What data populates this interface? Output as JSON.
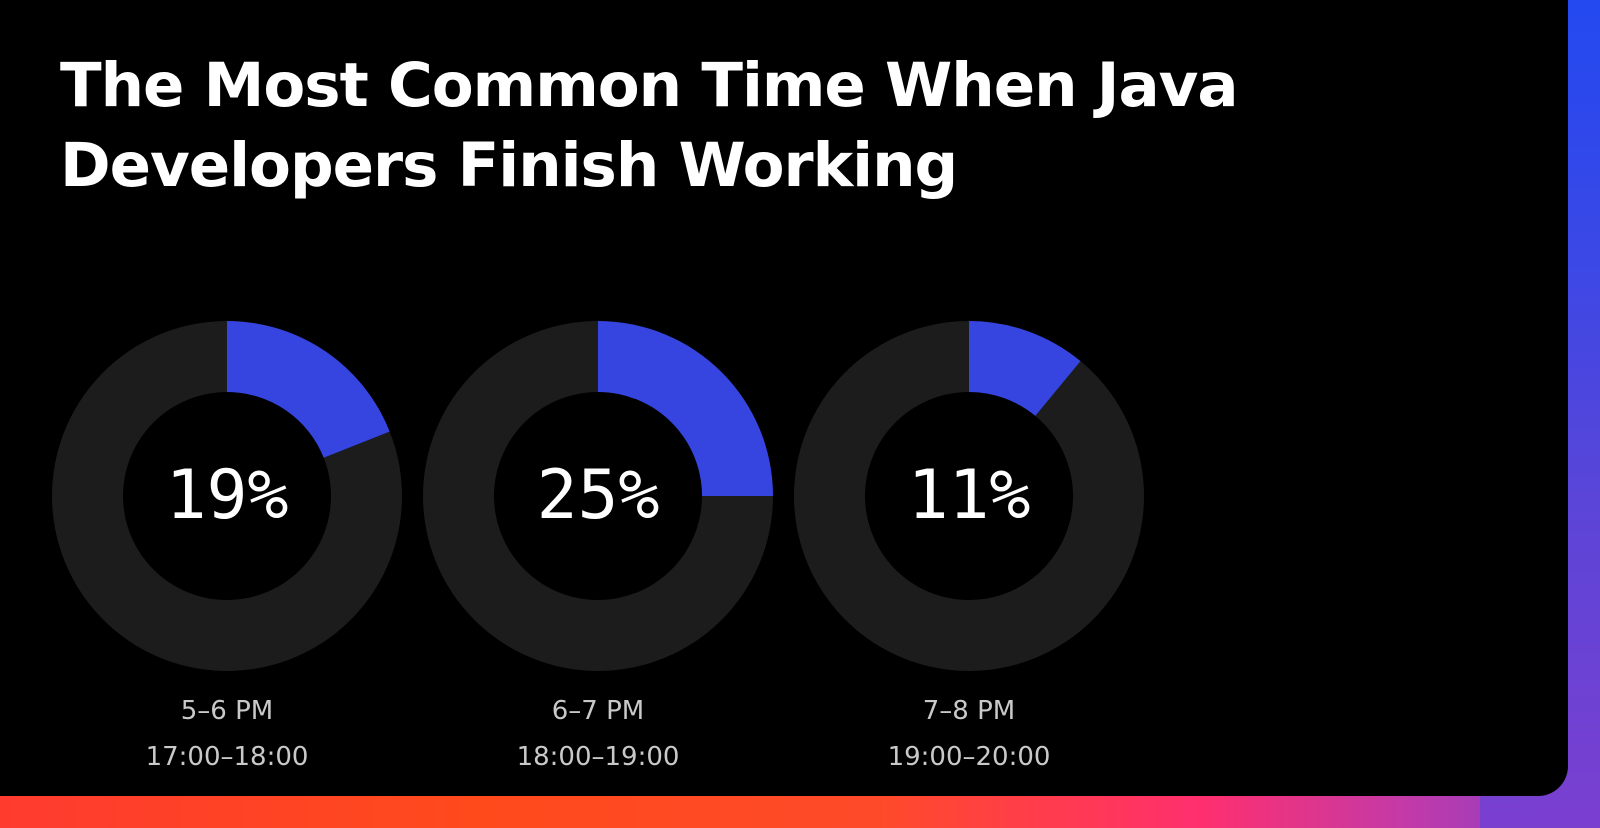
{
  "title": "The Most Common Time When Java Developers Finish Working",
  "colors": {
    "accent": "#3645e0",
    "track": "#1c1c1c",
    "background": "#000000"
  },
  "chart_data": {
    "type": "pie",
    "charts": [
      {
        "value": 19,
        "value_label": "19%",
        "label_12h": "5–6 PM",
        "label_24h": "17:00–18:00"
      },
      {
        "value": 25,
        "value_label": "25%",
        "label_12h": "6–7 PM",
        "label_24h": "18:00–19:00"
      },
      {
        "value": 11,
        "value_label": "11%",
        "label_12h": "7–8 PM",
        "label_24h": "19:00–20:00"
      }
    ]
  }
}
